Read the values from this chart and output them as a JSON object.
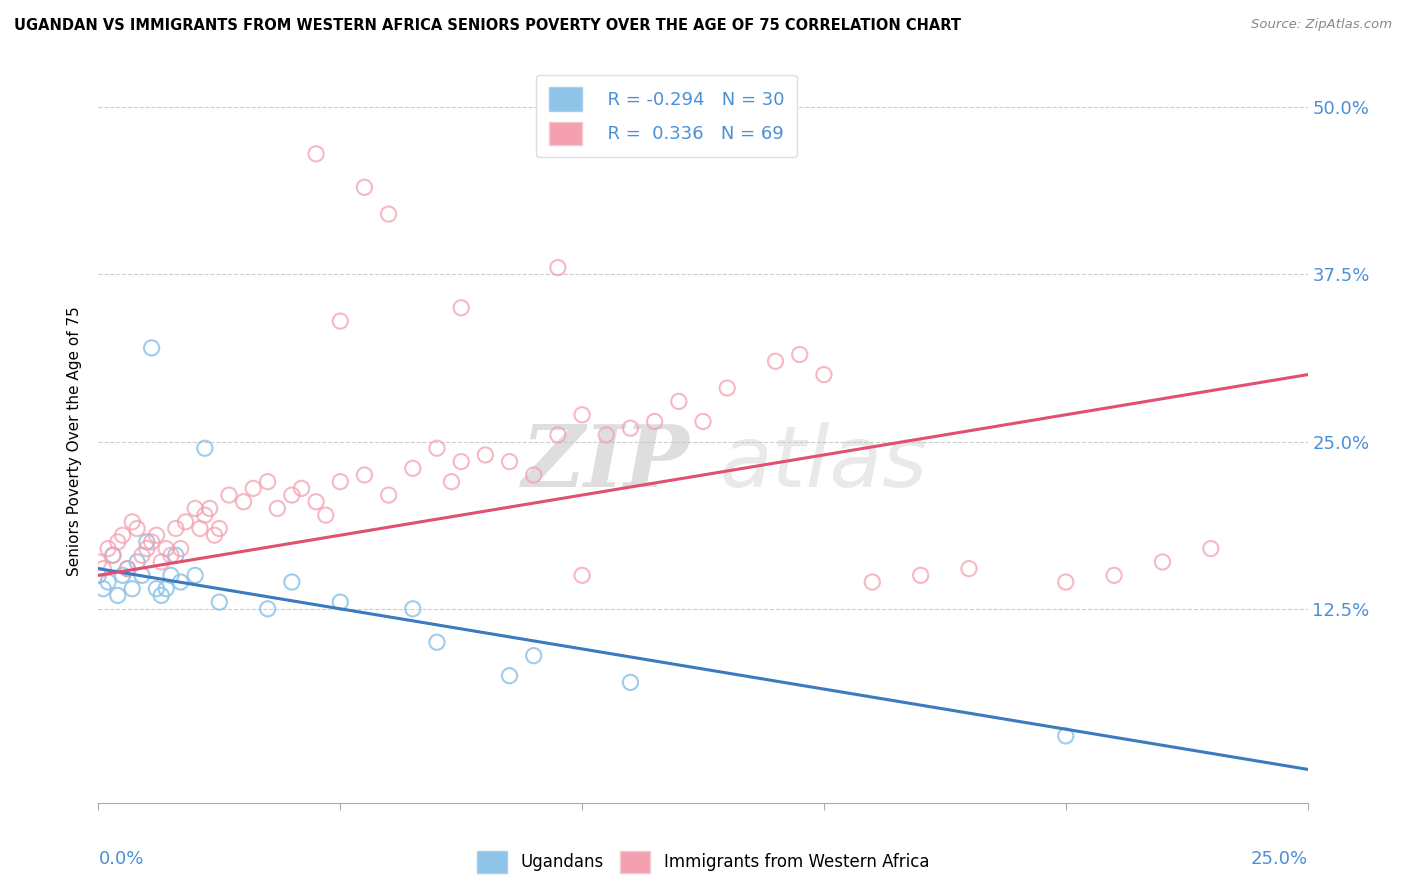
{
  "title": "UGANDAN VS IMMIGRANTS FROM WESTERN AFRICA SENIORS POVERTY OVER THE AGE OF 75 CORRELATION CHART",
  "source": "Source: ZipAtlas.com",
  "ylabel": "Seniors Poverty Over the Age of 75",
  "xmin": 0.0,
  "xmax": 25.0,
  "ymin": -2.0,
  "ymax": 52.0,
  "yticks": [
    0.0,
    12.5,
    25.0,
    37.5,
    50.0
  ],
  "ytick_labels": [
    "",
    "12.5%",
    "25.0%",
    "37.5%",
    "50.0%"
  ],
  "legend_r1": "R = -0.294",
  "legend_n1": "N = 30",
  "legend_r2": "R =  0.336",
  "legend_n2": "N = 69",
  "color_blue": "#8ec4e8",
  "color_pink": "#f4a0b0",
  "color_blue_line": "#3a7abf",
  "color_pink_line": "#e05070",
  "watermark_zip": "ZIP",
  "watermark_atlas": "atlas",
  "ugandan_x": [
    0.0,
    0.1,
    0.2,
    0.3,
    0.4,
    0.5,
    0.6,
    0.7,
    0.8,
    0.9,
    1.0,
    1.1,
    1.2,
    1.3,
    1.4,
    1.5,
    1.6,
    1.7,
    2.0,
    2.2,
    2.5,
    3.5,
    4.0,
    5.0,
    6.5,
    7.0,
    8.5,
    9.0,
    11.0,
    20.0
  ],
  "ugandan_y": [
    15.0,
    14.0,
    14.5,
    16.5,
    13.5,
    15.0,
    15.5,
    14.0,
    16.0,
    15.0,
    17.5,
    32.0,
    14.0,
    13.5,
    14.0,
    15.0,
    16.5,
    14.5,
    15.0,
    24.5,
    13.0,
    12.5,
    14.5,
    13.0,
    12.5,
    10.0,
    7.5,
    9.0,
    7.0,
    3.0
  ],
  "west_africa_x": [
    0.0,
    0.1,
    0.2,
    0.3,
    0.4,
    0.5,
    0.6,
    0.7,
    0.8,
    0.9,
    1.0,
    1.1,
    1.2,
    1.3,
    1.4,
    1.5,
    1.6,
    1.7,
    1.8,
    2.0,
    2.1,
    2.2,
    2.3,
    2.4,
    2.5,
    2.7,
    3.0,
    3.2,
    3.5,
    3.7,
    4.0,
    4.2,
    4.5,
    4.7,
    5.0,
    5.5,
    6.0,
    6.5,
    7.0,
    7.3,
    7.5,
    8.0,
    8.5,
    9.0,
    9.5,
    10.0,
    10.5,
    11.0,
    11.5,
    12.0,
    12.5,
    13.0,
    14.0,
    15.0,
    16.0,
    17.0,
    18.0,
    5.5,
    6.0,
    4.5,
    7.5,
    9.5,
    10.0,
    14.5,
    20.0,
    21.0,
    22.0,
    23.0,
    5.0
  ],
  "west_africa_y": [
    16.0,
    15.5,
    17.0,
    16.5,
    17.5,
    18.0,
    15.5,
    19.0,
    18.5,
    16.5,
    17.0,
    17.5,
    18.0,
    16.0,
    17.0,
    16.5,
    18.5,
    17.0,
    19.0,
    20.0,
    18.5,
    19.5,
    20.0,
    18.0,
    18.5,
    21.0,
    20.5,
    21.5,
    22.0,
    20.0,
    21.0,
    21.5,
    20.5,
    19.5,
    22.0,
    22.5,
    21.0,
    23.0,
    24.5,
    22.0,
    23.5,
    24.0,
    23.5,
    22.5,
    25.5,
    27.0,
    25.5,
    26.0,
    26.5,
    28.0,
    26.5,
    29.0,
    31.0,
    30.0,
    14.5,
    15.0,
    15.5,
    44.0,
    42.0,
    46.5,
    35.0,
    38.0,
    15.0,
    31.5,
    14.5,
    15.0,
    16.0,
    17.0,
    34.0
  ]
}
